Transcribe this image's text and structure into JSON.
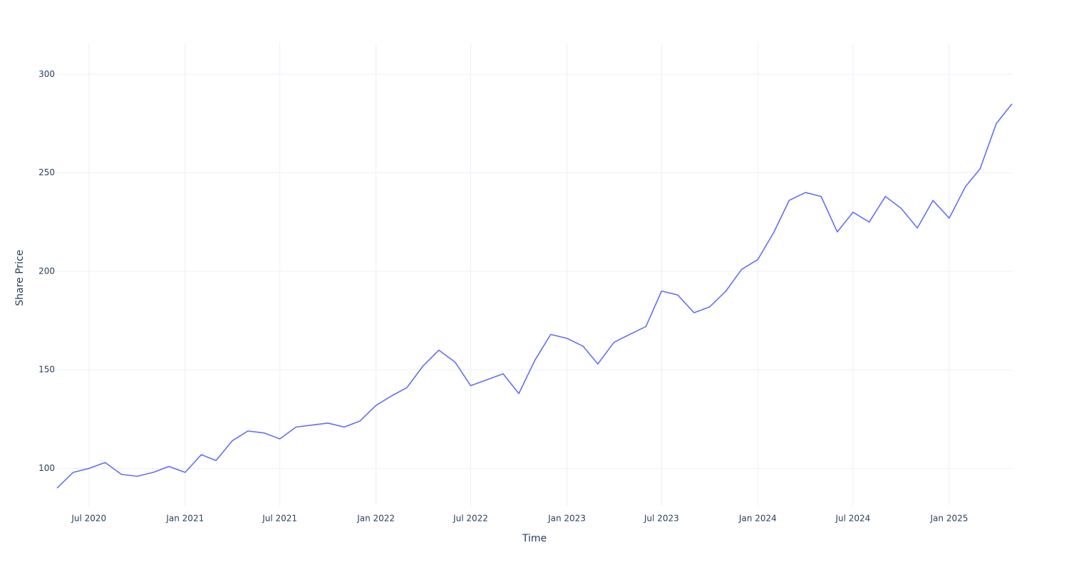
{
  "chart_data": {
    "type": "line",
    "x_label": "Time",
    "y_label": "Share Price",
    "x": [
      "2020-05",
      "2020-06",
      "2020-07",
      "2020-08",
      "2020-09",
      "2020-10",
      "2020-11",
      "2020-12",
      "2021-01",
      "2021-02",
      "2021-03",
      "2021-04",
      "2021-05",
      "2021-06",
      "2021-07",
      "2021-08",
      "2021-09",
      "2021-10",
      "2021-11",
      "2021-12",
      "2022-01",
      "2022-02",
      "2022-03",
      "2022-04",
      "2022-05",
      "2022-06",
      "2022-07",
      "2022-08",
      "2022-09",
      "2022-10",
      "2022-11",
      "2022-12",
      "2023-01",
      "2023-02",
      "2023-03",
      "2023-04",
      "2023-05",
      "2023-06",
      "2023-07",
      "2023-08",
      "2023-09",
      "2023-10",
      "2023-11",
      "2023-12",
      "2024-01",
      "2024-02",
      "2024-03",
      "2024-04",
      "2024-05",
      "2024-06",
      "2024-07",
      "2024-08",
      "2024-09",
      "2024-10",
      "2024-11",
      "2024-12",
      "2025-01",
      "2025-02",
      "2025-03",
      "2025-04",
      "2025-05"
    ],
    "series": [
      {
        "name": "Share Price",
        "color": "#636efa",
        "values": [
          90,
          98,
          100,
          103,
          97,
          96,
          98,
          101,
          98,
          107,
          104,
          114,
          119,
          118,
          115,
          121,
          122,
          123,
          121,
          124,
          132,
          137,
          141,
          152,
          160,
          154,
          142,
          145,
          148,
          138,
          155,
          168,
          166,
          162,
          153,
          164,
          168,
          172,
          190,
          188,
          179,
          182,
          190,
          201,
          206,
          220,
          236,
          240,
          238,
          220,
          230,
          225,
          238,
          232,
          222,
          236,
          227,
          243,
          252,
          275,
          285
        ]
      }
    ],
    "xlim": [
      "2020-05",
      "2025-05"
    ],
    "xticks": [
      {
        "value": "2020-07",
        "label": "Jul 2020"
      },
      {
        "value": "2021-01",
        "label": "Jan 2021"
      },
      {
        "value": "2021-07",
        "label": "Jul 2021"
      },
      {
        "value": "2022-01",
        "label": "Jan 2022"
      },
      {
        "value": "2022-07",
        "label": "Jul 2022"
      },
      {
        "value": "2023-01",
        "label": "Jan 2023"
      },
      {
        "value": "2023-07",
        "label": "Jul 2023"
      },
      {
        "value": "2024-01",
        "label": "Jan 2024"
      },
      {
        "value": "2024-07",
        "label": "Jul 2024"
      },
      {
        "value": "2025-01",
        "label": "Jan 2025"
      }
    ],
    "ylim": [
      81,
      316
    ],
    "yticks": [
      100,
      150,
      200,
      250,
      300
    ],
    "grid": true
  }
}
